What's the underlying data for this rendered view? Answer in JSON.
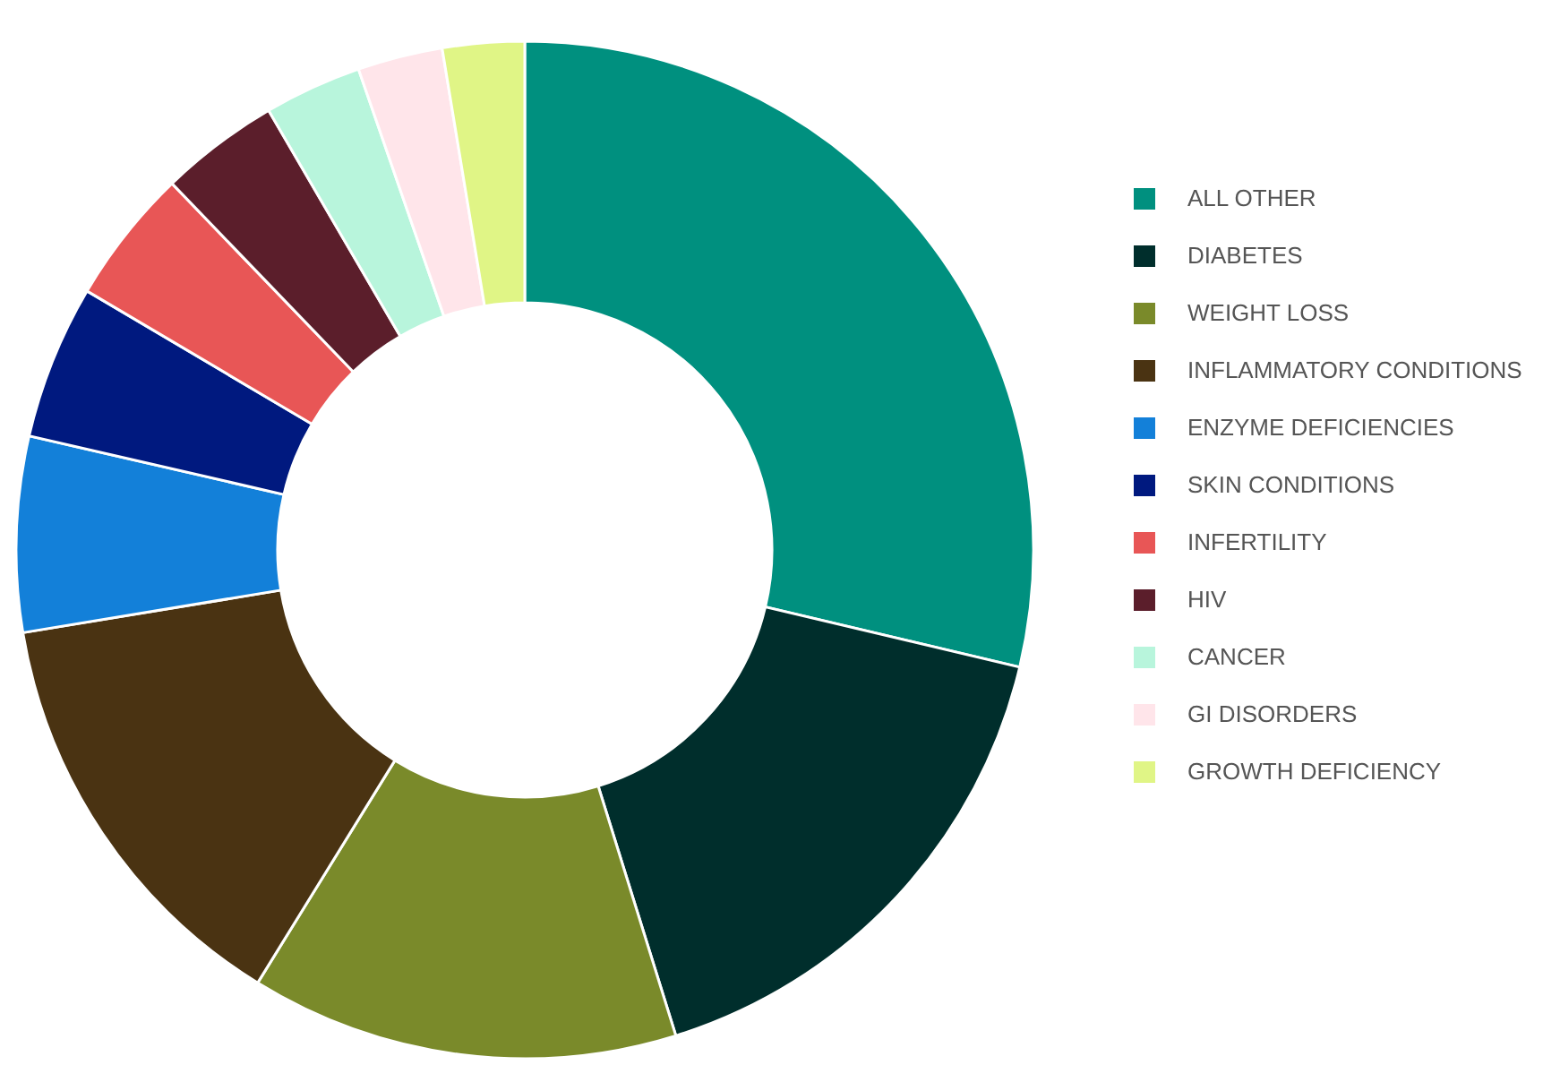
{
  "chart_data": {
    "type": "donut",
    "categories": [
      "ALL OTHER",
      "DIABETES",
      "WEIGHT LOSS",
      "INFLAMMATORY CONDITIONS",
      "ENZYME DEFICIENCIES",
      "SKIN CONDITIONS",
      "INFERTILITY",
      "HIV",
      "CANCER",
      "GI DISORDERS",
      "GROWTH DEFICIENCY"
    ],
    "values": [
      28.7,
      16.5,
      13.6,
      13.6,
      6.2,
      4.9,
      4.3,
      3.8,
      3.1,
      2.7,
      2.6
    ],
    "colors": [
      "#00907f",
      "#002e2c",
      "#7a8a2a",
      "#4a3312",
      "#1380d9",
      "#00197f",
      "#e85656",
      "#5b1e2b",
      "#b8f5dc",
      "#ffe5ea",
      "#e0f586"
    ],
    "legend": "right"
  }
}
